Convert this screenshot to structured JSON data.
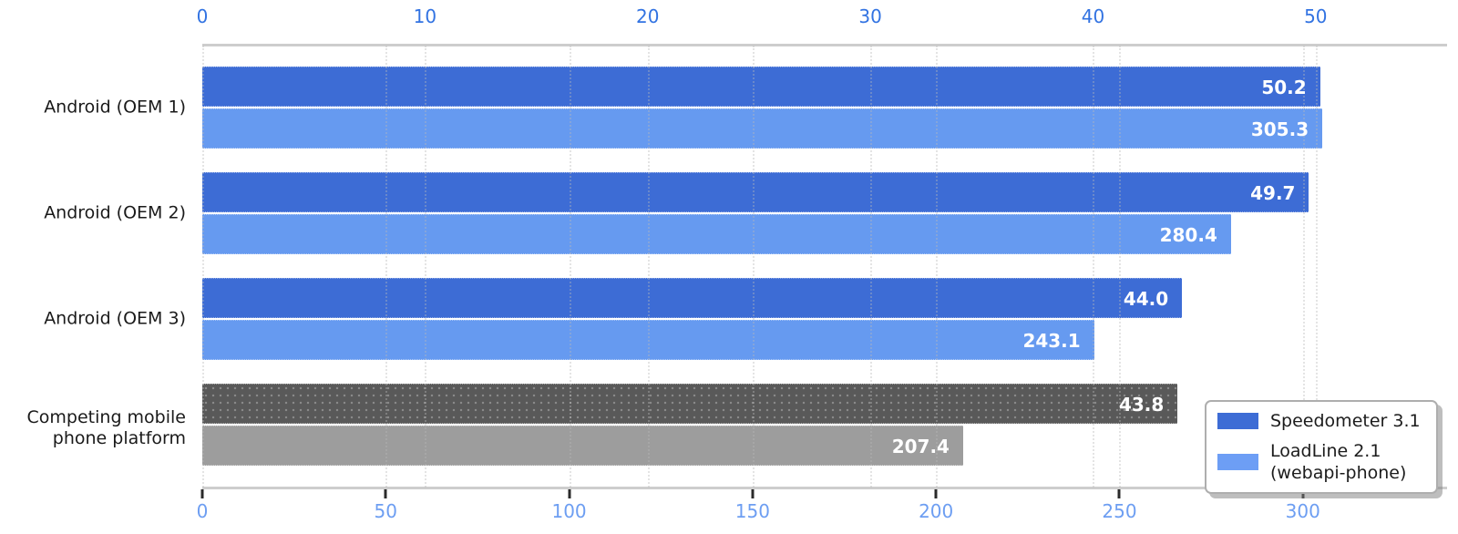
{
  "chart_data": {
    "type": "bar",
    "orientation": "horizontal",
    "title": "",
    "categories": [
      "Android (OEM 1)",
      "Android (OEM 2)",
      "Android (OEM 3)",
      "Competing mobile\nphone platform"
    ],
    "series": [
      {
        "name": "Speedometer 3.1",
        "axis": "top",
        "values": [
          50.2,
          49.7,
          44.0,
          43.8
        ]
      },
      {
        "name": "LoadLine 2.1 (webapi-phone)",
        "axis": "bottom",
        "values": [
          305.3,
          280.4,
          243.1,
          207.4
        ]
      }
    ],
    "value_labels": [
      [
        "50.2",
        "305.3"
      ],
      [
        "49.7",
        "280.4"
      ],
      [
        "44.0",
        "243.1"
      ],
      [
        "43.8",
        "207.4"
      ]
    ],
    "row_colors": [
      [
        "#3d6cd5",
        "#669af0"
      ],
      [
        "#3d6cd5",
        "#669af0"
      ],
      [
        "#3d6cd5",
        "#669af0"
      ],
      [
        "#595959",
        "#9d9d9d"
      ]
    ],
    "top_axis": {
      "ticks": [
        0,
        10,
        20,
        30,
        40,
        50
      ],
      "min": 0,
      "max": 55.9,
      "label_color": "#3273e2"
    },
    "bottom_axis": {
      "ticks": [
        0,
        50,
        100,
        150,
        200,
        250,
        300
      ],
      "min": 0,
      "max": 339.3,
      "label_color": "#6d9ef2"
    },
    "legend": [
      {
        "label": "Speedometer 3.1",
        "color": "#3d6cd5"
      },
      {
        "label": "LoadLine 2.1\n(webapi-phone)",
        "color": "#6d9ef5"
      }
    ],
    "grid": "dotted",
    "legend_position": "lower-right"
  }
}
